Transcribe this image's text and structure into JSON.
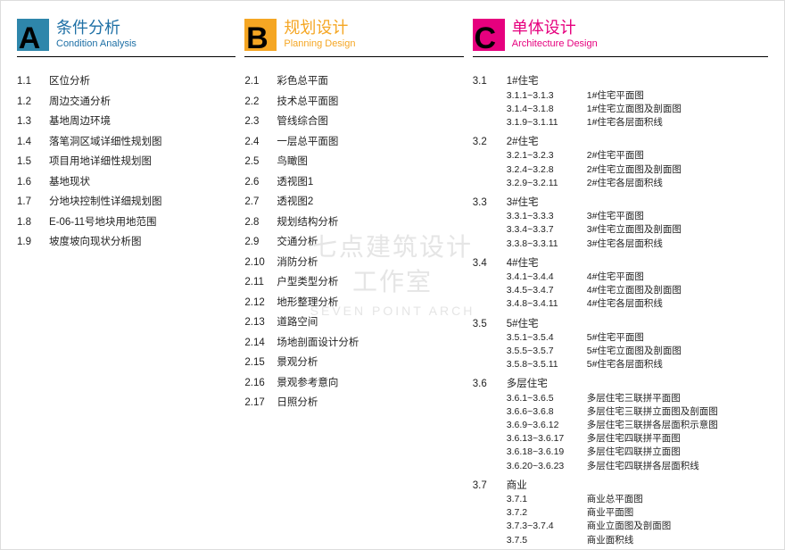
{
  "watermark": {
    "cn1": "七点建筑设计",
    "cn2": "工作室",
    "en": "SEVEN POINT ARCH"
  },
  "colors": {
    "a_block": "#2e86ab",
    "a_text": "#1d6fa5",
    "b_block": "#f5a623",
    "b_text": "#f5a623",
    "c_block": "#e6007e",
    "c_text": "#e6007e"
  },
  "sections": {
    "a": {
      "letter": "A",
      "title_cn": "条件分析",
      "title_en": "Condition Analysis",
      "items": [
        {
          "n": "1.1",
          "t": "区位分析"
        },
        {
          "n": "1.2",
          "t": "周边交通分析"
        },
        {
          "n": "1.3",
          "t": "基地周边环境"
        },
        {
          "n": "1.4",
          "t": "落笔洞区域详细性规划图"
        },
        {
          "n": "1.5",
          "t": "项目用地详细性规划图"
        },
        {
          "n": "1.6",
          "t": "基地现状"
        },
        {
          "n": "1.7",
          "t": "分地块控制性详细规划图"
        },
        {
          "n": "1.8",
          "t": "E-06-11号地块用地范围"
        },
        {
          "n": "1.9",
          "t": "坡度坡向现状分析图"
        }
      ]
    },
    "b": {
      "letter": "B",
      "title_cn": "规划设计",
      "title_en": "Planning Design",
      "items": [
        {
          "n": "2.1",
          "t": "彩色总平面"
        },
        {
          "n": "2.2",
          "t": "技术总平面图"
        },
        {
          "n": "2.3",
          "t": "管线综合图"
        },
        {
          "n": "2.4",
          "t": "一层总平面图"
        },
        {
          "n": "2.5",
          "t": "鸟瞰图"
        },
        {
          "n": "2.6",
          "t": "透视图1"
        },
        {
          "n": "2.7",
          "t": "透视图2"
        },
        {
          "n": "2.8",
          "t": "规划结构分析"
        },
        {
          "n": "2.9",
          "t": "交通分析"
        },
        {
          "n": "2.10",
          "t": "消防分析"
        },
        {
          "n": "2.11",
          "t": "户型类型分析"
        },
        {
          "n": "2.12",
          "t": "地形整理分析"
        },
        {
          "n": "2.13",
          "t": "道路空间"
        },
        {
          "n": "2.14",
          "t": "场地剖面设计分析"
        },
        {
          "n": "2.15",
          "t": "景观分析"
        },
        {
          "n": "2.16",
          "t": "景观参考意向"
        },
        {
          "n": "2.17",
          "t": "日照分析"
        }
      ]
    },
    "c": {
      "letter": "C",
      "title_cn": "单体设计",
      "title_en": "Architecture Design",
      "groups": [
        {
          "n": "3.1",
          "t": "1#住宅",
          "subs": [
            {
              "r": "3.1.1~3.1.3",
              "t": "1#住宅平面图"
            },
            {
              "r": "3.1.4~3.1.8",
              "t": "1#住宅立面图及剖面图"
            },
            {
              "r": "3.1.9~3.1.11",
              "t": "1#住宅各层面积线"
            }
          ]
        },
        {
          "n": "3.2",
          "t": "2#住宅",
          "subs": [
            {
              "r": "3.2.1~3.2.3",
              "t": "2#住宅平面图"
            },
            {
              "r": "3.2.4~3.2.8",
              "t": "2#住宅立面图及剖面图"
            },
            {
              "r": "3.2.9~3.2.11",
              "t": "2#住宅各层面积线"
            }
          ]
        },
        {
          "n": "3.3",
          "t": "3#住宅",
          "subs": [
            {
              "r": "3.3.1~3.3.3",
              "t": "3#住宅平面图"
            },
            {
              "r": "3.3.4~3.3.7",
              "t": "3#住宅立面图及剖面图"
            },
            {
              "r": "3.3.8~3.3.11",
              "t": "3#住宅各层面积线"
            }
          ]
        },
        {
          "n": "3.4",
          "t": "4#住宅",
          "subs": [
            {
              "r": "3.4.1~3.4.4",
              "t": "4#住宅平面图"
            },
            {
              "r": "3.4.5~3.4.7",
              "t": "4#住宅立面图及剖面图"
            },
            {
              "r": "3.4.8~3.4.11",
              "t": "4#住宅各层面积线"
            }
          ]
        },
        {
          "n": "3.5",
          "t": "5#住宅",
          "subs": [
            {
              "r": "3.5.1~3.5.4",
              "t": "5#住宅平面图"
            },
            {
              "r": "3.5.5~3.5.7",
              "t": "5#住宅立面图及剖面图"
            },
            {
              "r": "3.5.8~3.5.11",
              "t": "5#住宅各层面积线"
            }
          ]
        },
        {
          "n": "3.6",
          "t": "多层住宅",
          "subs": [
            {
              "r": "3.6.1~3.6.5",
              "t": "多层住宅三联拼平面图"
            },
            {
              "r": "3.6.6~3.6.8",
              "t": "多层住宅三联拼立面图及剖面图"
            },
            {
              "r": "3.6.9~3.6.12",
              "t": "多层住宅三联拼各层面积示意图"
            },
            {
              "r": "3.6.13~3.6.17",
              "t": "多层住宅四联拼平面图"
            },
            {
              "r": "3.6.18~3.6.19",
              "t": "多层住宅四联拼立面图"
            },
            {
              "r": "3.6.20~3.6.23",
              "t": "多层住宅四联拼各层面积线"
            }
          ]
        },
        {
          "n": "3.7",
          "t": "商业",
          "subs": [
            {
              "r": "3.7.1",
              "t": "商业总平面图"
            },
            {
              "r": "3.7.2",
              "t": "商业平面图"
            },
            {
              "r": "3.7.3~3.7.4",
              "t": "商业立面图及剖面图"
            },
            {
              "r": "3.7.5",
              "t": "商业面积线"
            }
          ]
        }
      ]
    }
  }
}
